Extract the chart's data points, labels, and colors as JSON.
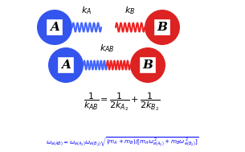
{
  "fig_width": 3.05,
  "fig_height": 1.89,
  "dpi": 100,
  "bg_color": "#ffffff",
  "blue_color": "#3355ee",
  "red_color": "#dd2222",
  "spring_blue": "#4466ff",
  "spring_red": "#ee2222",
  "ka_label": "$k_A$",
  "kb_label": "$k_B$",
  "kab_label": "$k_{AB}$",
  "formula1": "$\\dfrac{1}{k_{AB}} = \\dfrac{1}{2k_{A_2}} + \\dfrac{1}{2k_{B_2}}$",
  "formula2": "$\\omega_{e(AB)} = \\omega_{e(A_2)}\\omega_{e(B_2)}\\sqrt{(m_A+m_B)/[m_A\\omega_{e(A_2)}^{\\,2}+m_B\\omega_{e(B_2)}^{\\,2}]}$"
}
